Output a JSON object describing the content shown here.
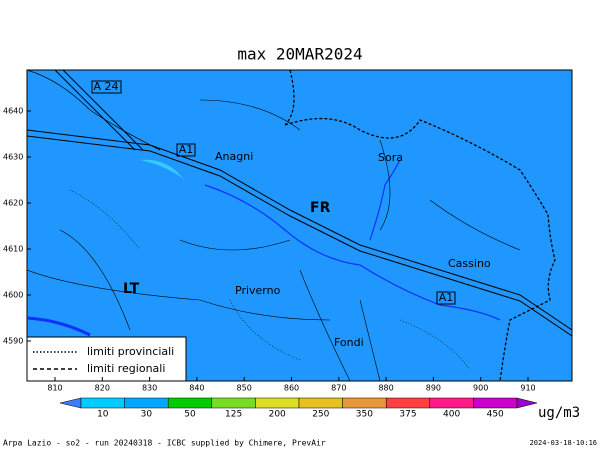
{
  "title": "max 20MAR2024",
  "axes": {
    "xticks": [
      "810",
      "820",
      "830",
      "840",
      "850",
      "860",
      "870",
      "880",
      "890",
      "900",
      "910"
    ],
    "yticks": [
      "4640",
      "4630",
      "4620",
      "4610",
      "4600",
      "4590"
    ]
  },
  "places": [
    "Anagni",
    "Sora",
    "FR",
    "Cassino",
    "LT",
    "Priverno",
    "Fondi"
  ],
  "road_labels": [
    "A 24",
    "A1",
    "A1"
  ],
  "legend": {
    "provincial": "limiti provinciali",
    "regional": "limiti regionali"
  },
  "colorbar": {
    "labels": [
      "10",
      "30",
      "50",
      "125",
      "200",
      "250",
      "350",
      "375",
      "400",
      "450"
    ],
    "unit": "ug/m3"
  },
  "footer": {
    "left": "Arpa Lazio - so2 - run 20240318 - ICBC supplied by Chimere, PrevAir",
    "right": "2024-03-18-10:16"
  }
}
